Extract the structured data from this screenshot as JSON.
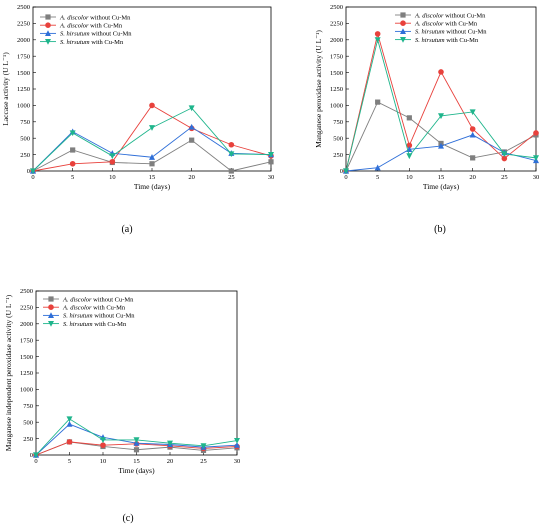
{
  "colors": {
    "A_without": "#7f7f7f",
    "A_with": "#e8413c",
    "S_without": "#2f6fd8",
    "S_with": "#1fb58c"
  },
  "chart_data": [
    {
      "type": "line",
      "panel_label": "(a)",
      "xlabel": "Time (days)",
      "ylabel": "Laccase activity (U L⁻¹)",
      "x": [
        0,
        5,
        10,
        15,
        20,
        25,
        30
      ],
      "xlim": [
        0,
        30
      ],
      "ylim": [
        0,
        2500
      ],
      "xticks": [
        "0",
        "5",
        "10",
        "15",
        "20",
        "25",
        "30"
      ],
      "yticks": [
        "0",
        "250",
        "500",
        "750",
        "1000",
        "1250",
        "1500",
        "1750",
        "2000",
        "2250",
        "2500"
      ],
      "legend_position": "top-left",
      "series": [
        {
          "name": "A. discolor without Cu-Mn",
          "species": "A. discolor",
          "treatment": " without Cu-Mn",
          "color_key": "A_without",
          "marker": "square",
          "values": [
            0,
            320,
            130,
            110,
            470,
            0,
            140
          ]
        },
        {
          "name": "A. discolor with Cu-Mn",
          "species": "A. discolor",
          "treatment": " with Cu-Mn",
          "color_key": "A_with",
          "marker": "circle",
          "values": [
            0,
            110,
            140,
            1000,
            650,
            400,
            230
          ]
        },
        {
          "name": "S. hirsutum without Cu-Mn",
          "species": "S. hirsutum",
          "treatment": " without Cu-Mn",
          "color_key": "S_without",
          "marker": "triangle-up",
          "values": [
            0,
            600,
            270,
            210,
            670,
            270,
            250
          ]
        },
        {
          "name": "S. hirsutum with Cu-Mn",
          "species": "S. hirsutum",
          "treatment": " with Cu-Mn",
          "color_key": "S_with",
          "marker": "triangle-down",
          "values": [
            0,
            580,
            230,
            660,
            960,
            260,
            250
          ]
        }
      ]
    },
    {
      "type": "line",
      "panel_label": "(b)",
      "xlabel": "Time (days)",
      "ylabel": "Manganese peroxidase activity (U L⁻¹)",
      "x": [
        0,
        5,
        10,
        15,
        20,
        25,
        30
      ],
      "xlim": [
        0,
        30
      ],
      "ylim": [
        0,
        2500
      ],
      "xticks": [
        "0",
        "5",
        "10",
        "15",
        "20",
        "25",
        "30"
      ],
      "yticks": [
        "0",
        "250",
        "500",
        "750",
        "1000",
        "1250",
        "1500",
        "1750",
        "2000",
        "2250",
        "2500"
      ],
      "legend_position": "top-right",
      "series": [
        {
          "name": "A. discolor without Cu-Mn",
          "species": "A. discolor",
          "treatment": " without Cu-Mn",
          "color_key": "A_without",
          "marker": "square",
          "values": [
            0,
            1050,
            810,
            420,
            200,
            290,
            550
          ]
        },
        {
          "name": "A. discolor with Cu-Mn",
          "species": "A. discolor",
          "treatment": " with Cu-Mn",
          "color_key": "A_with",
          "marker": "circle",
          "values": [
            0,
            2090,
            390,
            1510,
            640,
            190,
            580
          ]
        },
        {
          "name": "S. hirsutum without Cu-Mn",
          "species": "S. hirsutum",
          "treatment": " without Cu-Mn",
          "color_key": "S_without",
          "marker": "triangle-up",
          "values": [
            0,
            50,
            330,
            380,
            550,
            280,
            160
          ]
        },
        {
          "name": "S. hirsutum with Cu-Mn",
          "species": "S. hirsutum",
          "treatment": " with Cu-Mn",
          "color_key": "S_with",
          "marker": "triangle-down",
          "values": [
            0,
            2000,
            230,
            840,
            900,
            260,
            200
          ]
        }
      ]
    },
    {
      "type": "line",
      "panel_label": "(c)",
      "xlabel": "Time (days)",
      "ylabel": "Manganese independent peroxidase activity (U L⁻¹)",
      "x": [
        0,
        5,
        10,
        15,
        20,
        25,
        30
      ],
      "xlim": [
        0,
        30
      ],
      "ylim": [
        0,
        2500
      ],
      "xticks": [
        "0",
        "5",
        "10",
        "15",
        "20",
        "25",
        "30"
      ],
      "yticks": [
        "0",
        "250",
        "500",
        "750",
        "1000",
        "1250",
        "1500",
        "1750",
        "2000",
        "2250",
        "2500"
      ],
      "legend_position": "top-left",
      "series": [
        {
          "name": "A. discolor without Cu-Mn",
          "species": "A. discolor",
          "treatment": " without Cu-Mn",
          "color_key": "A_without",
          "marker": "square",
          "values": [
            0,
            200,
            130,
            80,
            120,
            70,
            110
          ]
        },
        {
          "name": "A. discolor with Cu-Mn",
          "species": "A. discolor",
          "treatment": " with Cu-Mn",
          "color_key": "A_with",
          "marker": "circle",
          "values": [
            0,
            200,
            150,
            170,
            140,
            100,
            130
          ]
        },
        {
          "name": "S. hirsutum without Cu-Mn",
          "species": "S. hirsutum",
          "treatment": " without Cu-Mn",
          "color_key": "S_without",
          "marker": "triangle-up",
          "values": [
            0,
            470,
            270,
            180,
            160,
            120,
            150
          ]
        },
        {
          "name": "S. hirsutum with Cu-Mn",
          "species": "S. hirsutum",
          "treatment": " with Cu-Mn",
          "color_key": "S_with",
          "marker": "triangle-down",
          "values": [
            0,
            550,
            230,
            230,
            180,
            140,
            220
          ]
        }
      ]
    }
  ]
}
